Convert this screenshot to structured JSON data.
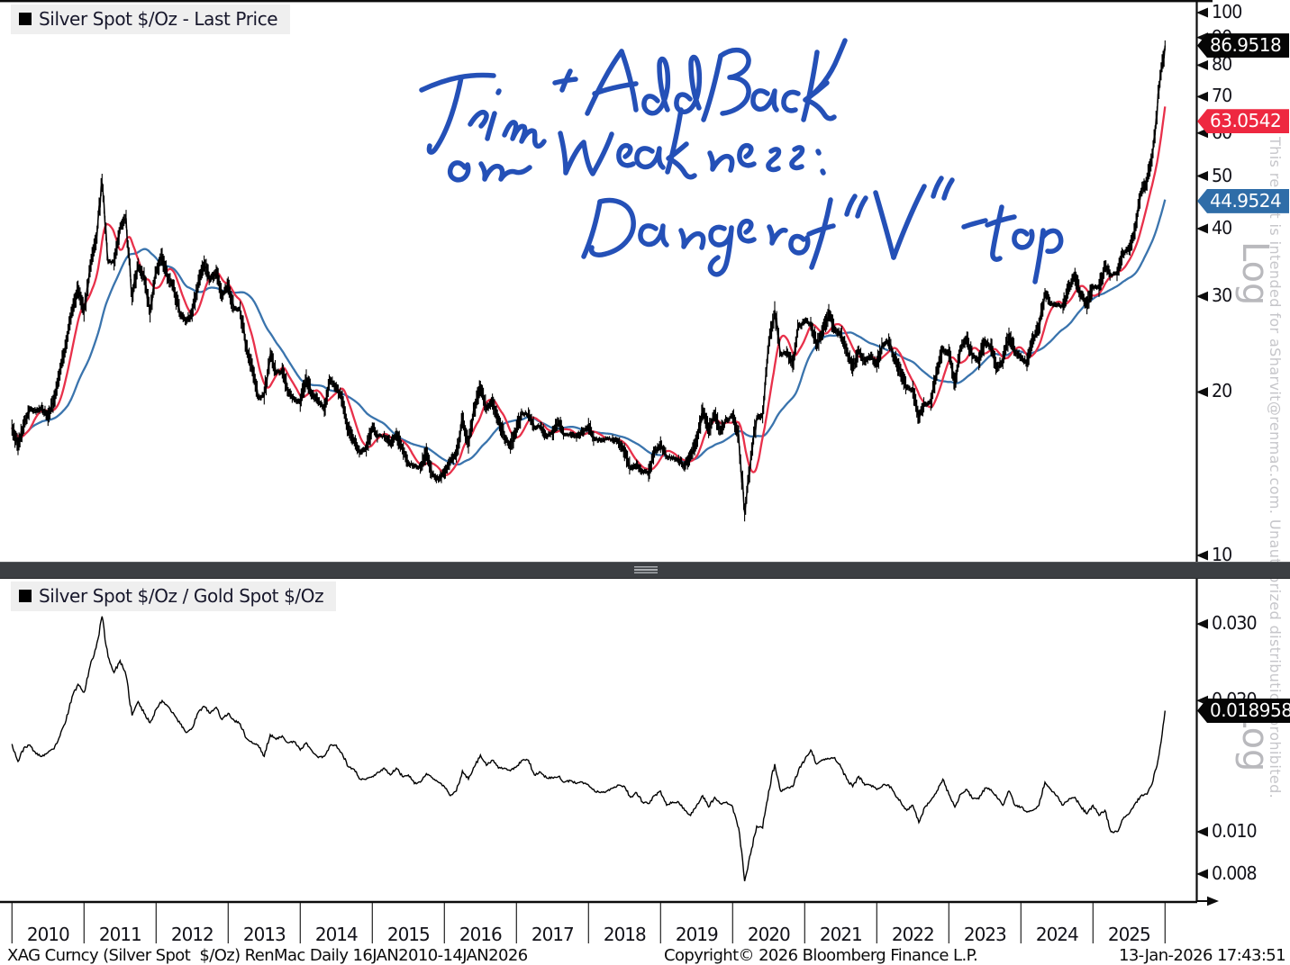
{
  "panel_top": {
    "legend": "Silver Spot $/Oz - Last Price",
    "axis_label": "Log",
    "price_tags": [
      {
        "text": "86.9518",
        "value": 86.9518,
        "bg": "#050505"
      },
      {
        "text": "63.0542",
        "value": 63.0542,
        "bg": "#ee2840"
      },
      {
        "text": "44.9524",
        "value": 44.9524,
        "bg": "#2f6da8"
      }
    ]
  },
  "panel_bottom": {
    "legend": "Silver Spot $/Oz / Gold Spot $/Oz",
    "axis_label": "Log",
    "price_tag": {
      "text": "0.018958",
      "value": 0.018958,
      "bg": "#050505"
    }
  },
  "xaxis": {
    "years": [
      "2010",
      "2011",
      "2012",
      "2013",
      "2014",
      "2015",
      "2016",
      "2017",
      "2018",
      "2019",
      "2020",
      "2021",
      "2022",
      "2023",
      "2024",
      "2025"
    ]
  },
  "annotation": {
    "text": "Trim + Add Back on Weakness: Danger of \"V\" - top",
    "color": "#1c49b5"
  },
  "watermark": {
    "disclaimer": "This report is intended for aSharvit@renmac.com. Unauthorized distribution prohibited."
  },
  "footer": {
    "left": "XAG Curncy (Silver Spot  $/Oz) RenMac Daily 16JAN2010-14JAN2026",
    "center": "Copyright© 2026 Bloomberg Finance L.P.",
    "right": "13-Jan-2026 17:43:51"
  },
  "colors": {
    "price": "#000000",
    "ma_fast": "#e8304a",
    "ma_slow": "#3a74ad",
    "frame": "#0c0c0c",
    "legend_bg": "#efefef",
    "divider": "#3c3f43",
    "watermark_gray": "#c6c6ca"
  },
  "chart_data": [
    {
      "type": "line",
      "title": "Silver Spot $/Oz - Last Price",
      "scale": "log",
      "x_start_year": 2010,
      "points_per_year": 12,
      "x_range_label": "16JAN2010-14JAN2026",
      "ylim": [
        9.5,
        110
      ],
      "yticks": [
        100,
        90,
        80,
        70,
        60,
        50,
        40,
        30,
        20,
        10
      ],
      "legend_position": "top-left",
      "grid": false,
      "series": [
        {
          "name": "Silver Spot $/Oz - Last Price",
          "color": "#000000",
          "last": 86.9518,
          "values": [
            17.2,
            15.9,
            17.4,
            18.6,
            18.4,
            18.7,
            18.0,
            19.4,
            21.8,
            24.5,
            28.2,
            30.9,
            28.0,
            33.8,
            37.9,
            48.6,
            34.7,
            34.8,
            40.1,
            41.7,
            30.0,
            34.3,
            32.7,
            27.9,
            33.2,
            35.5,
            32.4,
            31.0,
            27.7,
            27.0,
            28.0,
            31.7,
            34.5,
            32.3,
            33.3,
            30.1,
            31.4,
            28.5,
            28.3,
            24.2,
            22.2,
            19.5,
            19.7,
            23.4,
            21.7,
            21.9,
            20.0,
            19.4,
            19.1,
            21.2,
            19.8,
            19.2,
            18.7,
            21.0,
            20.4,
            19.4,
            17.1,
            16.2,
            15.5,
            15.7,
            17.2,
            16.6,
            16.6,
            16.1,
            16.7,
            15.7,
            14.8,
            14.6,
            14.5,
            15.5,
            14.1,
            13.8,
            14.2,
            14.9,
            15.4,
            17.8,
            16.0,
            18.6,
            20.3,
            18.6,
            19.2,
            17.8,
            16.5,
            15.9,
            17.1,
            18.3,
            18.2,
            17.2,
            17.3,
            16.6,
            16.8,
            17.6,
            16.7,
            16.7,
            16.5,
            16.9,
            17.3,
            16.4,
            16.3,
            16.4,
            16.4,
            16.1,
            15.5,
            14.5,
            14.7,
            14.3,
            14.2,
            15.5,
            16.0,
            15.2,
            15.1,
            15.0,
            14.6,
            15.3,
            16.3,
            18.4,
            17.0,
            18.1,
            17.0,
            17.8,
            18.0,
            16.7,
            12.0,
            15.0,
            17.9,
            18.2,
            24.4,
            28.3,
            23.5,
            23.7,
            22.6,
            26.4,
            27.0,
            26.7,
            24.4,
            25.9,
            28.0,
            26.1,
            25.5,
            23.9,
            22.2,
            23.9,
            22.8,
            23.3,
            22.5,
            24.4,
            24.8,
            23.0,
            21.7,
            20.4,
            20.2,
            18.0,
            19.0,
            19.2,
            21.8,
            24.0,
            23.6,
            20.9,
            24.1,
            25.0,
            23.3,
            22.8,
            24.8,
            24.2,
            22.2,
            22.9,
            25.3,
            23.8,
            23.2,
            22.7,
            25.0,
            26.4,
            30.4,
            29.1,
            28.9,
            28.8,
            31.2,
            32.6,
            30.2,
            28.9,
            31.3,
            31.1,
            34.1,
            32.9,
            33.0,
            36.0,
            36.7,
            39.7,
            46.7,
            48.8,
            56.0,
            72.0,
            86.95
          ]
        }
      ],
      "overlays": [
        {
          "name": "short moving average",
          "color": "#e8304a",
          "window_months": 2.7,
          "last": 63.0542
        },
        {
          "name": "long moving average",
          "color": "#3a74ad",
          "window_months": 9.5,
          "last": 44.9524
        }
      ]
    },
    {
      "type": "line",
      "title": "Silver Spot $/Oz / Gold Spot $/Oz",
      "scale": "log",
      "x_start_year": 2010,
      "points_per_year": 12,
      "ylim": [
        0.0068,
        0.036
      ],
      "yticks": [
        0.03,
        0.02,
        0.01,
        0.008
      ],
      "legend_position": "top-left",
      "grid": false,
      "series": [
        {
          "name": "Silver Spot $/Oz / Gold Spot $/Oz",
          "color": "#000000",
          "last": 0.018958,
          "values": [
            0.0159,
            0.0145,
            0.0156,
            0.0158,
            0.0151,
            0.0149,
            0.0152,
            0.0155,
            0.0166,
            0.018,
            0.0204,
            0.0218,
            0.0209,
            0.024,
            0.0264,
            0.0312,
            0.0252,
            0.0232,
            0.0247,
            0.0228,
            0.0185,
            0.0199,
            0.0187,
            0.0178,
            0.0191,
            0.02,
            0.0194,
            0.0186,
            0.0177,
            0.0169,
            0.0173,
            0.0188,
            0.0194,
            0.0187,
            0.0193,
            0.0181,
            0.0187,
            0.018,
            0.0177,
            0.0164,
            0.016,
            0.0158,
            0.0149,
            0.0167,
            0.0163,
            0.0166,
            0.016,
            0.0161,
            0.0154,
            0.016,
            0.0153,
            0.0148,
            0.0149,
            0.0158,
            0.0158,
            0.0151,
            0.0141,
            0.0139,
            0.0132,
            0.0132,
            0.0134,
            0.0137,
            0.014,
            0.0135,
            0.014,
            0.0134,
            0.0135,
            0.0129,
            0.013,
            0.0136,
            0.0133,
            0.013,
            0.0127,
            0.0121,
            0.0124,
            0.0138,
            0.0132,
            0.0141,
            0.015,
            0.0142,
            0.0146,
            0.014,
            0.014,
            0.0138,
            0.0141,
            0.0146,
            0.0146,
            0.0135,
            0.0137,
            0.0133,
            0.0133,
            0.0134,
            0.013,
            0.0131,
            0.0129,
            0.013,
            0.0128,
            0.0124,
            0.0123,
            0.0124,
            0.0126,
            0.0128,
            0.0127,
            0.012,
            0.0123,
            0.0117,
            0.0116,
            0.0121,
            0.0124,
            0.0115,
            0.0117,
            0.0117,
            0.0112,
            0.0109,
            0.0115,
            0.0121,
            0.0114,
            0.012,
            0.0116,
            0.0117,
            0.0114,
            0.0102,
            0.0077,
            0.0089,
            0.0103,
            0.0102,
            0.0124,
            0.0143,
            0.0124,
            0.0126,
            0.0127,
            0.0139,
            0.0146,
            0.0154,
            0.0143,
            0.0146,
            0.0147,
            0.0148,
            0.0141,
            0.0132,
            0.0127,
            0.0134,
            0.0128,
            0.0128,
            0.0125,
            0.0128,
            0.0128,
            0.0122,
            0.0117,
            0.0112,
            0.0115,
            0.0105,
            0.0114,
            0.0118,
            0.0124,
            0.0132,
            0.0122,
            0.0114,
            0.0122,
            0.0125,
            0.0119,
            0.0119,
            0.0126,
            0.0125,
            0.012,
            0.0115,
            0.0124,
            0.0115,
            0.0114,
            0.0111,
            0.0112,
            0.0115,
            0.013,
            0.0125,
            0.0121,
            0.0115,
            0.0119,
            0.012,
            0.0114,
            0.011,
            0.0115,
            0.0109,
            0.0112,
            0.01,
            0.01,
            0.0107,
            0.011,
            0.0116,
            0.0121,
            0.0122,
            0.0131,
            0.015,
            0.018958
          ]
        }
      ]
    }
  ]
}
